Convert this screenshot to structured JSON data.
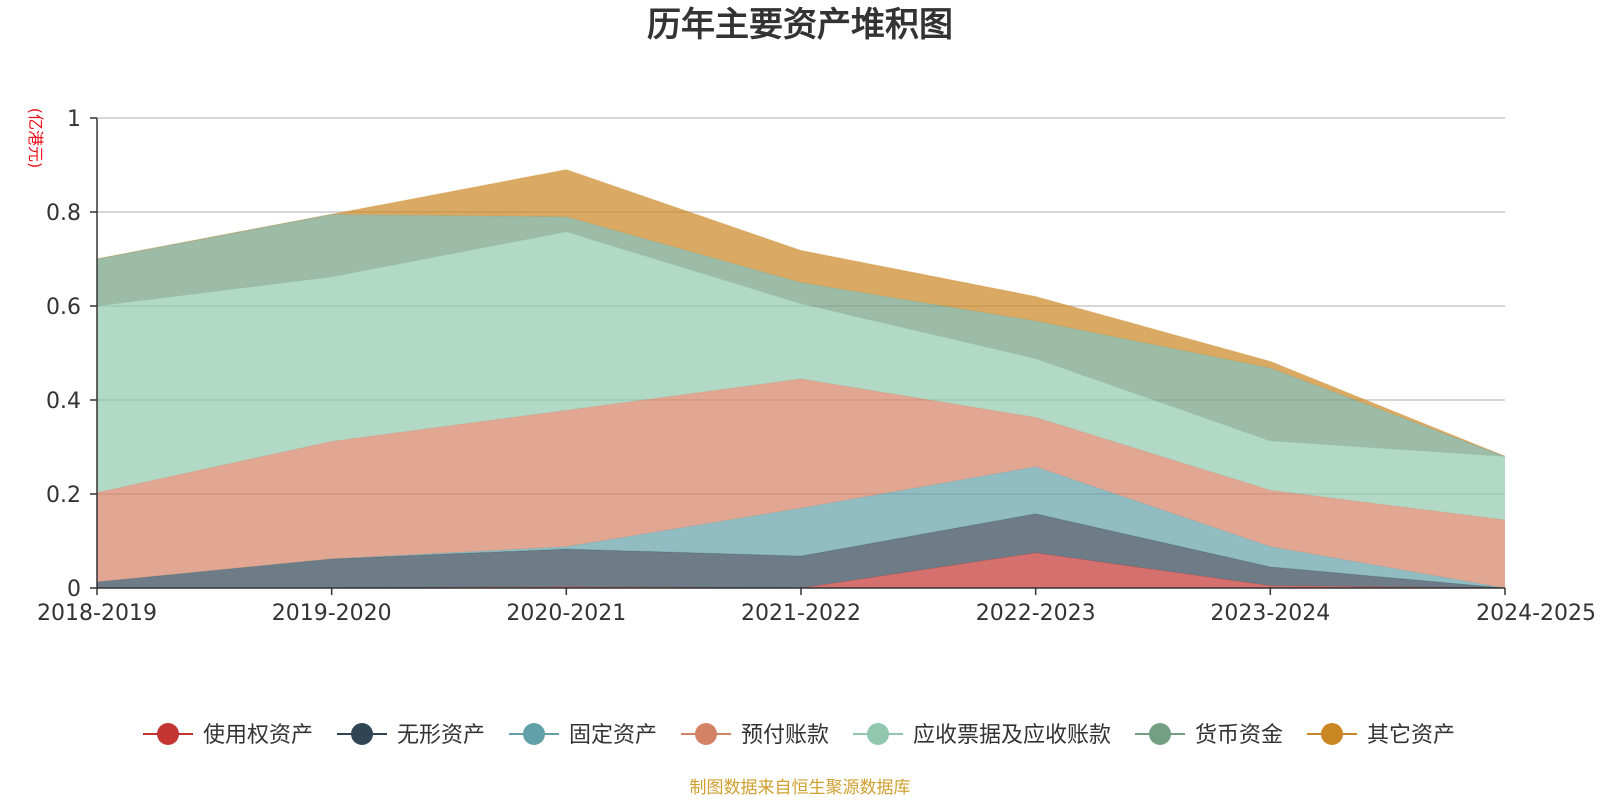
{
  "chart_data": {
    "type": "area",
    "stacked": true,
    "title": "历年主要资产堆积图",
    "ylabel": "(亿港元)",
    "source": "制图数据来自恒生聚源数据库",
    "x": [
      "2018-2019",
      "2019-2020",
      "2020-2021",
      "2021-2022",
      "2022-2023",
      "2023-2024",
      "2024-2025"
    ],
    "ylim": [
      0,
      1
    ],
    "yticks": [
      "0",
      "0.2",
      "0.4",
      "0.6",
      "0.8",
      "1"
    ],
    "grid": true,
    "legend_position": "bottom",
    "series": [
      {
        "name": "使用权资产",
        "color": "#c23531",
        "values": [
          0.0,
          0.0,
          0.003,
          0.0,
          0.075,
          0.005,
          0.0
        ]
      },
      {
        "name": "无形资产",
        "color": "#2f4554",
        "values": [
          0.013,
          0.062,
          0.08,
          0.068,
          0.083,
          0.04,
          0.0
        ]
      },
      {
        "name": "固定资产",
        "color": "#61a0a8",
        "values": [
          0.0,
          0.0,
          0.005,
          0.102,
          0.1,
          0.043,
          0.0
        ]
      },
      {
        "name": "预付账款",
        "color": "#d48265",
        "values": [
          0.19,
          0.25,
          0.29,
          0.275,
          0.105,
          0.12,
          0.145
        ]
      },
      {
        "name": "应收票据及应收账款",
        "color": "#91c7ae",
        "values": [
          0.397,
          0.35,
          0.38,
          0.16,
          0.125,
          0.105,
          0.135
        ]
      },
      {
        "name": "货币资金",
        "color": "#749f83",
        "values": [
          0.1,
          0.133,
          0.032,
          0.045,
          0.08,
          0.155,
          0.0
        ]
      },
      {
        "name": "其它资产",
        "color": "#ca8622",
        "values": [
          0.0,
          0.0,
          0.1,
          0.068,
          0.052,
          0.014,
          0.0
        ]
      }
    ]
  }
}
